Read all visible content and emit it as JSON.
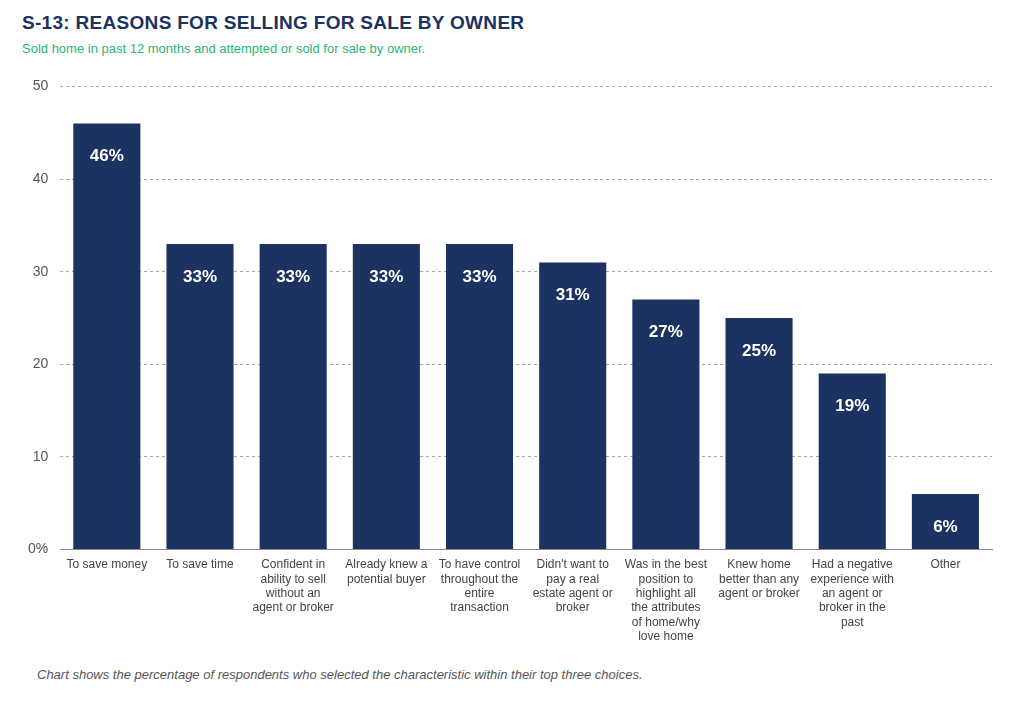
{
  "chart_data": {
    "type": "bar",
    "title": "S-13: REASONS FOR SELLING FOR SALE BY OWNER",
    "subtitle": "Sold home in past 12 months and attempted or sold for sale by owner.",
    "footnote": "Chart shows the percentage of respondents who selected the characteristic within their top three choices.",
    "categories": [
      "To save money",
      "To save time",
      "Confident in ability to sell without an agent or broker",
      "Already knew a potential buyer",
      "To have control throughout the entire transaction",
      "Didn't want to pay a real estate agent or broker",
      "Was in the best position to highlight all the attributes of home/why love home",
      "Knew home better than any agent or broker",
      "Had a negative experience with an agent or broker in the past",
      "Other"
    ],
    "values": [
      46,
      33,
      33,
      33,
      33,
      31,
      27,
      25,
      19,
      6
    ],
    "value_labels": [
      "46%",
      "33%",
      "33%",
      "33%",
      "33%",
      "31%",
      "27%",
      "25%",
      "19%",
      "6%"
    ],
    "color": "#1c3260",
    "ylim": [
      0,
      50
    ],
    "yticks": [
      {
        "value": 0,
        "label": "0%"
      },
      10,
      20,
      30,
      40,
      50
    ],
    "grid": true,
    "data_labels": true
  }
}
